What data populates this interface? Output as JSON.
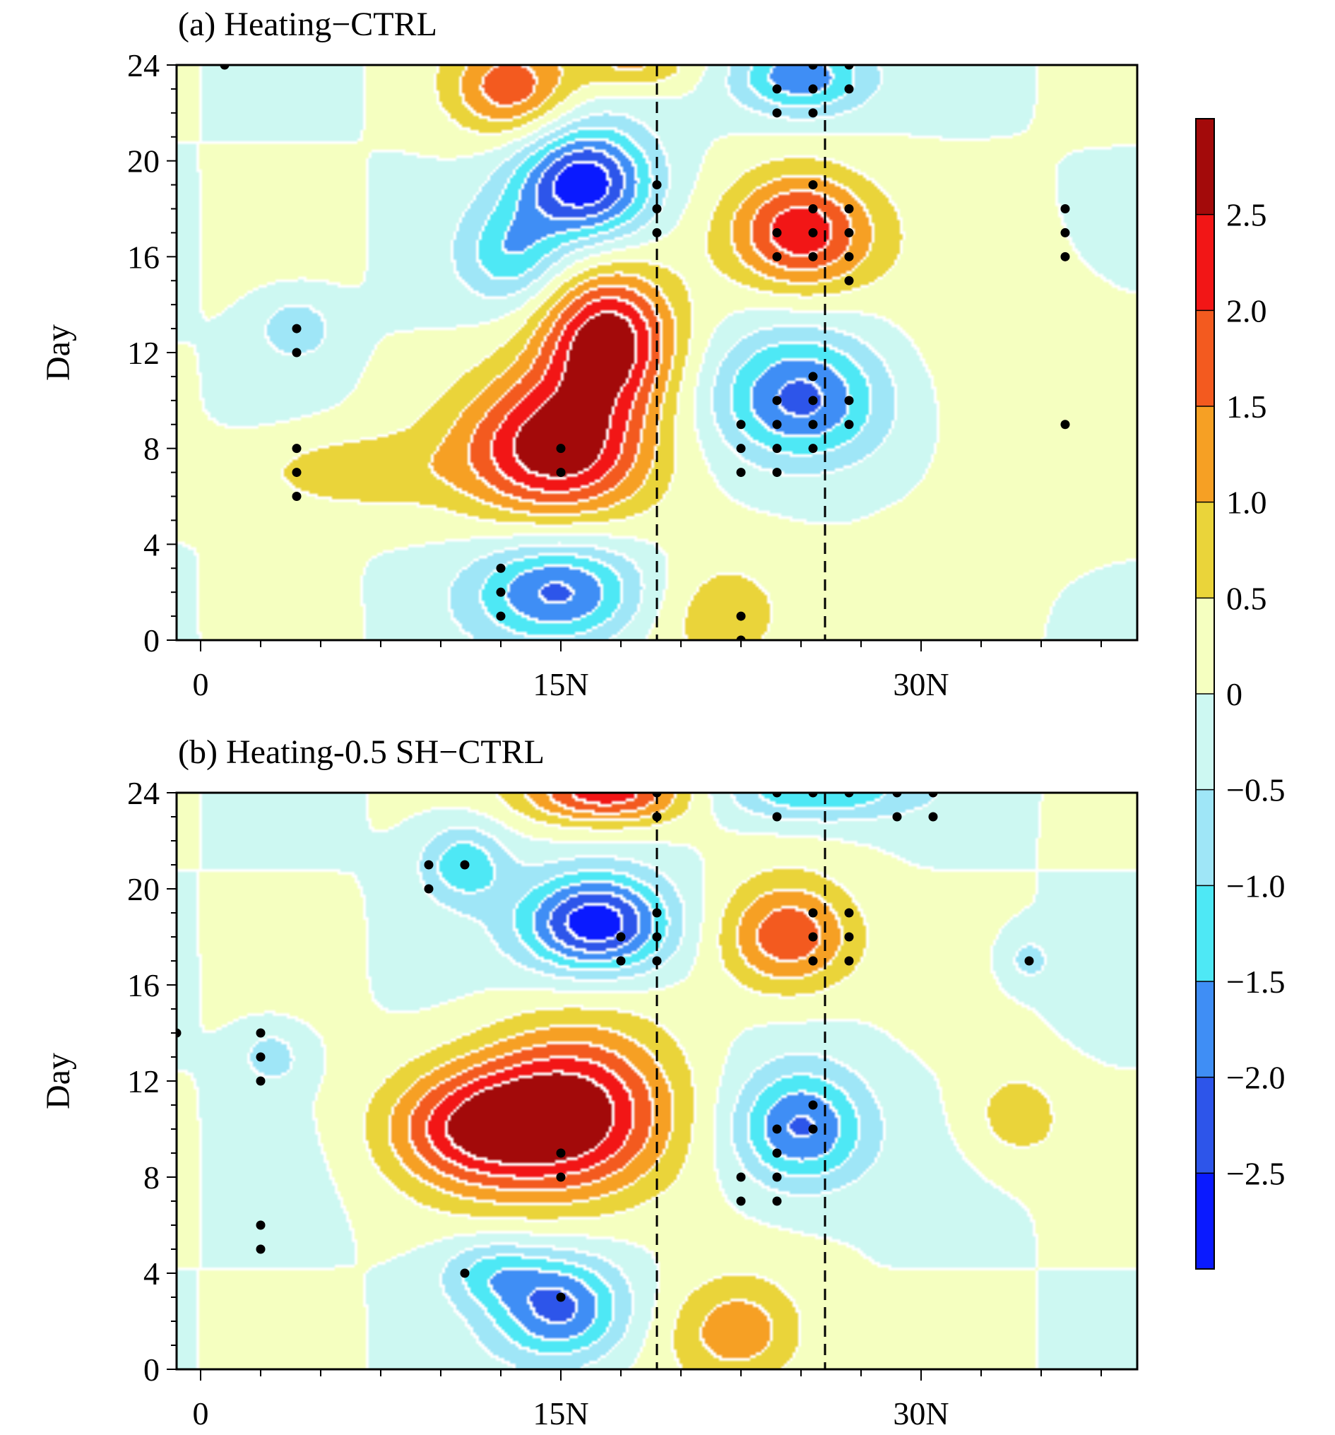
{
  "figure": {
    "colorbar": {
      "levels": [
        -3.0,
        -2.5,
        -2.0,
        -1.5,
        -1.0,
        -0.5,
        0,
        0.5,
        1.0,
        1.5,
        2.0,
        2.5,
        3.0
      ],
      "labels": [
        "−2.5",
        "−2.0",
        "−1.5",
        "−1.0",
        "−0.5",
        "0",
        "0.5",
        "1.0",
        "1.5",
        "2.0",
        "2.5"
      ],
      "colors": [
        "#0a1aff",
        "#2d55ea",
        "#3f8ef5",
        "#4ee8f5",
        "#9fe6f7",
        "#cdf8f2",
        "#f5ffc0",
        "#ead43a",
        "#f6a024",
        "#f35a1f",
        "#f21616",
        "#a30a0a"
      ]
    }
  },
  "chart_data": [
    {
      "type": "contour",
      "title": "(a) Heating−CTRL",
      "xlabel": "",
      "ylabel": "Day",
      "xlim": [
        -1,
        39
      ],
      "ylim": [
        0,
        24
      ],
      "xticks": [
        0,
        15,
        30
      ],
      "xtick_labels": [
        "0",
        "15N",
        "30N"
      ],
      "yticks": [
        0,
        4,
        8,
        12,
        16,
        20,
        24
      ],
      "ytick_labels": [
        "0",
        "4",
        "8",
        "12",
        "16",
        "20",
        "24"
      ],
      "dashed_lines_x": [
        19,
        26
      ],
      "field_centers": [
        {
          "x": 15,
          "y": 8,
          "amp": 3.0,
          "sx": 2.8,
          "sy": 2.2
        },
        {
          "x": 17,
          "y": 12.5,
          "amp": 2.8,
          "sx": 2.0,
          "sy": 2.0
        },
        {
          "x": 16,
          "y": 19,
          "amp": -3.0,
          "sx": 2.0,
          "sy": 1.7
        },
        {
          "x": 15,
          "y": 2,
          "amp": -2.2,
          "sx": 2.5,
          "sy": 1.6
        },
        {
          "x": 25,
          "y": 17,
          "amp": 2.5,
          "sx": 2.2,
          "sy": 1.8
        },
        {
          "x": 25,
          "y": 10,
          "amp": -2.3,
          "sx": 2.5,
          "sy": 2.0
        },
        {
          "x": 25,
          "y": 23.5,
          "amp": -2.0,
          "sx": 2.0,
          "sy": 1.2
        },
        {
          "x": 13,
          "y": 23,
          "amp": 1.8,
          "sx": 1.8,
          "sy": 1.5
        },
        {
          "x": 18,
          "y": 24,
          "amp": 1.2,
          "sx": 1.8,
          "sy": 0.8
        },
        {
          "x": 13,
          "y": 16,
          "amp": -1.3,
          "sx": 1.5,
          "sy": 1.5
        },
        {
          "x": 4,
          "y": 13,
          "amp": -0.9,
          "sx": 1.2,
          "sy": 1.0
        },
        {
          "x": 22,
          "y": 1,
          "amp": 0.9,
          "sx": 2.2,
          "sy": 1.8
        },
        {
          "x": 6,
          "y": 7,
          "amp": 0.9,
          "sx": 3.0,
          "sy": 1.2
        },
        {
          "x": 34,
          "y": 10,
          "amp": 0.4,
          "sx": 4.0,
          "sy": 4.0
        }
      ],
      "significance_points": [
        [
          1,
          24
        ],
        [
          4,
          13
        ],
        [
          4,
          12
        ],
        [
          4,
          8
        ],
        [
          4,
          7
        ],
        [
          4,
          6
        ],
        [
          12.5,
          3
        ],
        [
          12.5,
          2
        ],
        [
          12.5,
          1
        ],
        [
          15,
          8
        ],
        [
          15,
          7
        ],
        [
          19,
          19
        ],
        [
          19,
          18
        ],
        [
          19,
          17
        ],
        [
          22.5,
          1
        ],
        [
          22.5,
          0
        ],
        [
          22.5,
          9
        ],
        [
          22.5,
          8
        ],
        [
          22.5,
          7
        ],
        [
          24,
          23
        ],
        [
          24,
          22
        ],
        [
          24,
          17
        ],
        [
          24,
          16
        ],
        [
          24,
          10
        ],
        [
          24,
          9
        ],
        [
          24,
          8
        ],
        [
          24,
          7
        ],
        [
          25.5,
          24
        ],
        [
          25.5,
          23
        ],
        [
          25.5,
          22
        ],
        [
          25.5,
          19
        ],
        [
          25.5,
          18
        ],
        [
          25.5,
          17
        ],
        [
          25.5,
          16
        ],
        [
          25.5,
          11
        ],
        [
          25.5,
          10
        ],
        [
          25.5,
          9
        ],
        [
          25.5,
          8
        ],
        [
          27,
          24
        ],
        [
          27,
          23
        ],
        [
          27,
          18
        ],
        [
          27,
          17
        ],
        [
          27,
          16
        ],
        [
          27,
          15
        ],
        [
          27,
          10
        ],
        [
          27,
          9
        ],
        [
          36,
          18
        ],
        [
          36,
          17
        ],
        [
          36,
          16
        ],
        [
          36,
          9
        ]
      ]
    },
    {
      "type": "contour",
      "title": "(b) Heating-0.5 SH−CTRL",
      "xlabel": "",
      "ylabel": "Day",
      "xlim": [
        -1,
        39
      ],
      "ylim": [
        0,
        24
      ],
      "xticks": [
        0,
        15,
        30
      ],
      "xtick_labels": [
        "0",
        "15N",
        "30N"
      ],
      "yticks": [
        0,
        4,
        8,
        12,
        16,
        20,
        24
      ],
      "ytick_labels": [
        "0",
        "4",
        "8",
        "12",
        "16",
        "20",
        "24"
      ],
      "dashed_lines_x": [
        19,
        26
      ],
      "field_centers": [
        {
          "x": 15.5,
          "y": 10.5,
          "amp": 3.0,
          "sx": 3.0,
          "sy": 2.5
        },
        {
          "x": 11,
          "y": 10,
          "amp": 1.8,
          "sx": 2.5,
          "sy": 1.8
        },
        {
          "x": 16.5,
          "y": 18.5,
          "amp": -3.0,
          "sx": 2.2,
          "sy": 1.5
        },
        {
          "x": 15,
          "y": 2.5,
          "amp": -2.2,
          "sx": 2.0,
          "sy": 1.6
        },
        {
          "x": 12,
          "y": 4,
          "amp": -1.0,
          "sx": 1.5,
          "sy": 1.0
        },
        {
          "x": 17,
          "y": 24,
          "amp": 2.5,
          "sx": 2.5,
          "sy": 1.0
        },
        {
          "x": 24.5,
          "y": 18,
          "amp": 2.0,
          "sx": 2.0,
          "sy": 1.7
        },
        {
          "x": 25,
          "y": 10,
          "amp": -2.2,
          "sx": 2.0,
          "sy": 1.8
        },
        {
          "x": 25.5,
          "y": 24,
          "amp": -1.6,
          "sx": 3.0,
          "sy": 0.9
        },
        {
          "x": 11,
          "y": 21,
          "amp": -1.4,
          "sx": 1.3,
          "sy": 1.2
        },
        {
          "x": 22.5,
          "y": 1.5,
          "amp": 1.4,
          "sx": 2.0,
          "sy": 1.7
        },
        {
          "x": 3,
          "y": 13,
          "amp": -0.8,
          "sx": 1.0,
          "sy": 0.9
        },
        {
          "x": 34,
          "y": 10.5,
          "amp": 0.8,
          "sx": 1.5,
          "sy": 1.5
        },
        {
          "x": 34.5,
          "y": 17,
          "amp": -0.7,
          "sx": 0.8,
          "sy": 0.8
        }
      ],
      "significance_points": [
        [
          -1,
          14
        ],
        [
          2.5,
          14
        ],
        [
          2.5,
          13
        ],
        [
          2.5,
          12
        ],
        [
          2.5,
          6
        ],
        [
          2.5,
          5
        ],
        [
          9.5,
          21
        ],
        [
          9.5,
          20
        ],
        [
          11,
          21
        ],
        [
          11,
          4
        ],
        [
          15,
          9
        ],
        [
          15,
          8
        ],
        [
          15,
          3
        ],
        [
          17.5,
          18
        ],
        [
          17.5,
          17
        ],
        [
          19,
          24
        ],
        [
          19,
          23
        ],
        [
          19,
          19
        ],
        [
          19,
          18
        ],
        [
          19,
          17
        ],
        [
          22.5,
          8
        ],
        [
          22.5,
          7
        ],
        [
          24,
          24
        ],
        [
          24,
          23
        ],
        [
          24,
          10
        ],
        [
          24,
          9
        ],
        [
          24,
          8
        ],
        [
          24,
          7
        ],
        [
          25.5,
          24
        ],
        [
          25.5,
          19
        ],
        [
          25.5,
          18
        ],
        [
          25.5,
          17
        ],
        [
          25.5,
          11
        ],
        [
          25.5,
          10
        ],
        [
          27,
          24
        ],
        [
          27,
          19
        ],
        [
          27,
          18
        ],
        [
          27,
          17
        ],
        [
          29,
          24
        ],
        [
          29,
          23
        ],
        [
          30.5,
          24
        ],
        [
          30.5,
          23
        ],
        [
          34.5,
          17
        ]
      ]
    }
  ]
}
